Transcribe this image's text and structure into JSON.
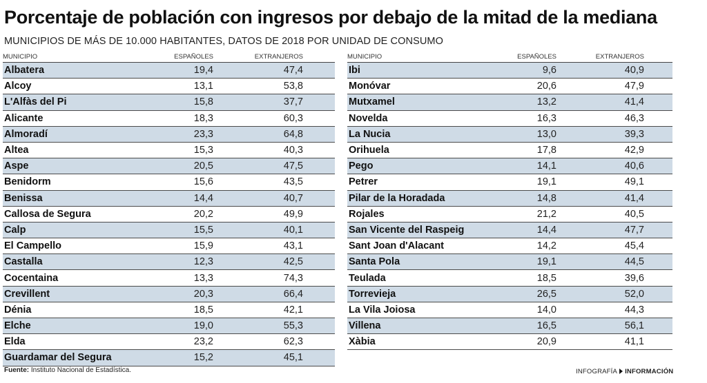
{
  "title": "Porcentaje de población con ingresos por debajo de la mitad de la mediana",
  "subtitle": "MUNICIPIOS DE MÁS DE 10.000 HABITANTES, DATOS DE 2018 POR UNIDAD DE CONSUMO",
  "columns": {
    "municipio": "MUNICIPIO",
    "espanoles": "ESPAÑOLES",
    "extranjeros": "EXTRANJEROS"
  },
  "chart_data": {
    "type": "table",
    "title": "Porcentaje de población con ingresos por debajo de la mitad de la mediana",
    "subtitle": "MUNICIPIOS DE MÁS DE 10.000 HABITANTES, DATOS DE 2018 POR UNIDAD DE CONSUMO",
    "columns": [
      "MUNICIPIO",
      "ESPAÑOLES",
      "EXTRANJEROS"
    ],
    "rows_left": [
      [
        "Albatera",
        "19,4",
        "47,4"
      ],
      [
        "Alcoy",
        "13,1",
        "53,8"
      ],
      [
        "L'Alfàs del Pi",
        "15,8",
        "37,7"
      ],
      [
        "Alicante",
        "18,3",
        "60,3"
      ],
      [
        "Almoradí",
        "23,3",
        "64,8"
      ],
      [
        "Altea",
        "15,3",
        "40,3"
      ],
      [
        "Aspe",
        "20,5",
        "47,5"
      ],
      [
        "Benidorm",
        "15,6",
        "43,5"
      ],
      [
        "Benissa",
        "14,4",
        "40,7"
      ],
      [
        "Callosa de Segura",
        "20,2",
        "49,9"
      ],
      [
        "Calp",
        "15,5",
        "40,1"
      ],
      [
        "El Campello",
        "15,9",
        "43,1"
      ],
      [
        "Castalla",
        "12,3",
        "42,5"
      ],
      [
        "Cocentaina",
        "13,3",
        "74,3"
      ],
      [
        "Crevillent",
        "20,3",
        "66,4"
      ],
      [
        "Dénia",
        "18,5",
        "42,1"
      ],
      [
        "Elche",
        "19,0",
        "55,3"
      ],
      [
        "Elda",
        "23,2",
        "62,3"
      ],
      [
        "Guardamar del Segura",
        "15,2",
        "45,1"
      ]
    ],
    "rows_right": [
      [
        "Ibi",
        "9,6",
        "40,9"
      ],
      [
        "Monóvar",
        "20,6",
        "47,9"
      ],
      [
        "Mutxamel",
        "13,2",
        "41,4"
      ],
      [
        "Novelda",
        "16,3",
        "46,3"
      ],
      [
        "La Nucia",
        "13,0",
        "39,3"
      ],
      [
        "Orihuela",
        "17,8",
        "42,9"
      ],
      [
        "Pego",
        "14,1",
        "40,6"
      ],
      [
        "Petrer",
        "19,1",
        "49,1"
      ],
      [
        "Pilar de la Horadada",
        "14,8",
        "41,4"
      ],
      [
        "Rojales",
        "21,2",
        "40,5"
      ],
      [
        "San Vicente del Raspeig",
        "14,4",
        "47,7"
      ],
      [
        "Sant Joan d'Alacant",
        "14,2",
        "45,4"
      ],
      [
        "Santa Pola",
        "19,1",
        "44,5"
      ],
      [
        "Teulada",
        "18,5",
        "39,6"
      ],
      [
        "Torrevieja",
        "26,5",
        "52,0"
      ],
      [
        "La Vila Joiosa",
        "14,0",
        "44,3"
      ],
      [
        "Villena",
        "16,5",
        "56,1"
      ],
      [
        "Xàbia",
        "20,9",
        "41,1"
      ]
    ]
  },
  "footer": {
    "source_label": "Fuente:",
    "source_text": "Instituto Nacional de Estadística.",
    "credit_label": "INFOGRAFÍA",
    "credit_brand": "INFORMACIÓN"
  },
  "colors": {
    "row_highlight": "#cfdbe6",
    "rule": "#4a4a4a"
  }
}
